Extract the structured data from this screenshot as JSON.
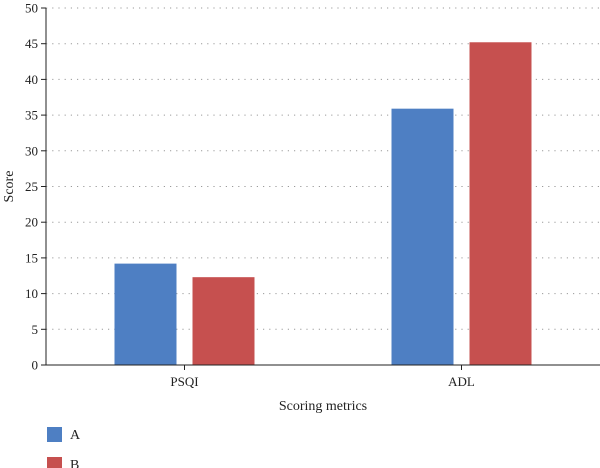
{
  "chart_data": {
    "type": "bar",
    "categories": [
      "PSQI",
      "ADL"
    ],
    "series": [
      {
        "name": "A",
        "values": [
          14.2,
          35.9
        ],
        "color": "#4e7fc3"
      },
      {
        "name": "B",
        "values": [
          12.3,
          45.2
        ],
        "color": "#c6504f"
      }
    ],
    "xlabel": "Scoring metrics",
    "ylabel": "Score",
    "ylim": [
      0,
      50
    ],
    "yticks": [
      "0",
      "5",
      "10",
      "15",
      "20",
      "25",
      "30",
      "35",
      "40",
      "45",
      "50"
    ],
    "grid": true,
    "legend_position": "bottom-left"
  }
}
